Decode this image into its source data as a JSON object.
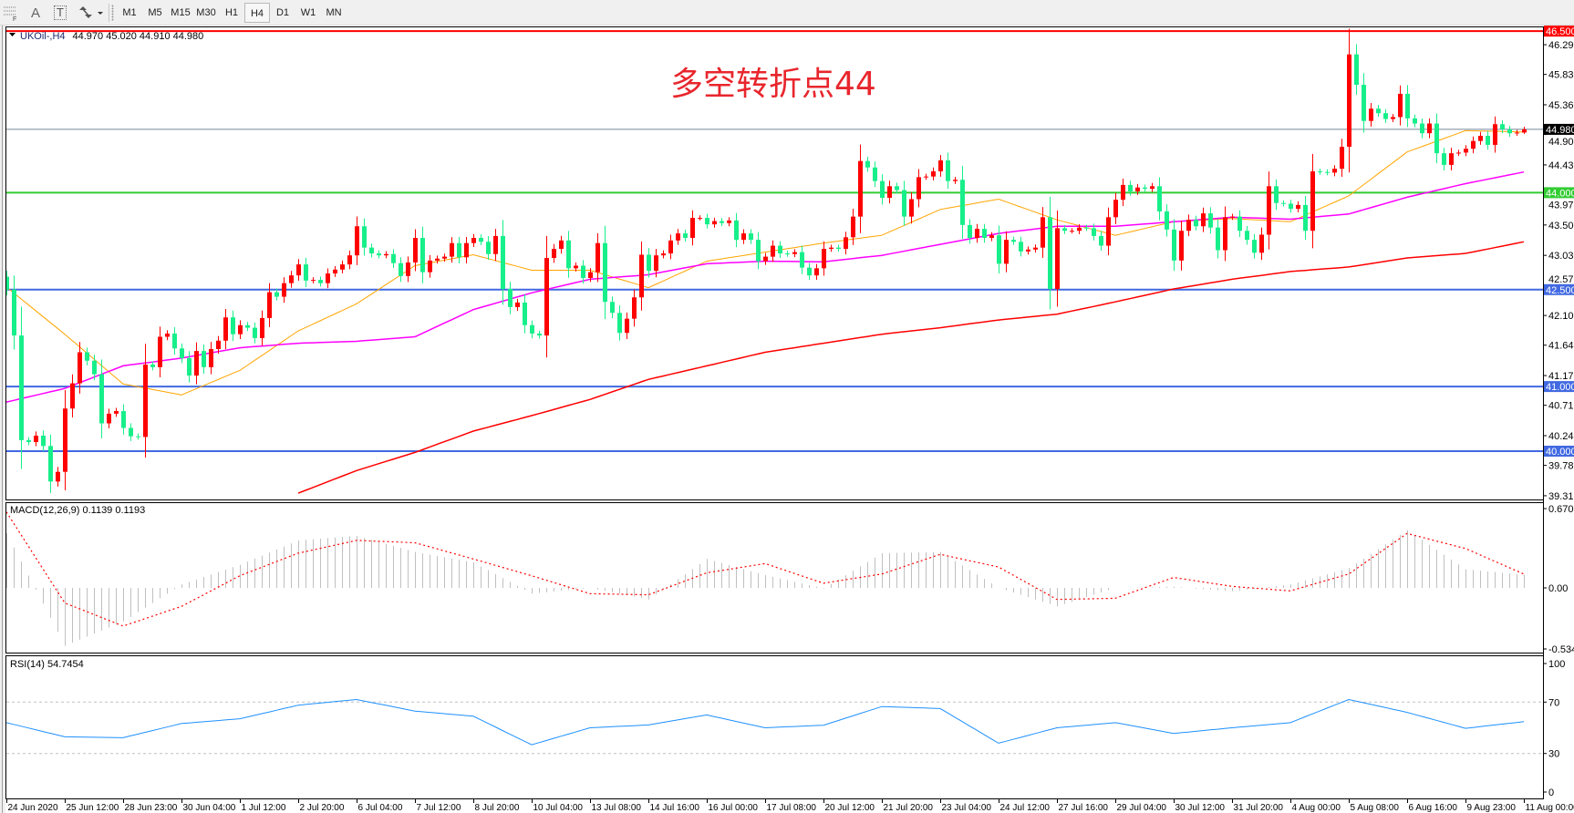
{
  "toolbar": {
    "tools": [
      {
        "icon": "fibonacci-grid-icon",
        "label": "F"
      },
      {
        "icon": "text-tool-icon",
        "label": "A"
      },
      {
        "icon": "text-label-icon",
        "label": "T"
      },
      {
        "icon": "arrows-tool-icon",
        "label": ""
      }
    ],
    "timeframes": [
      "M1",
      "M5",
      "M15",
      "M30",
      "H1",
      "H4",
      "D1",
      "W1",
      "MN"
    ],
    "active_timeframe": "H4"
  },
  "chart": {
    "symbol_timeframe": "UKOil-,H4",
    "ohlc_text": "44.970 45.020 44.910 44.980",
    "annotation": "多空转折点44",
    "colors": {
      "bull_candle": "#ff0000",
      "bear_candle": "#17ef8a",
      "background": "#ffffff"
    }
  },
  "chart_data": {
    "type": "candlestick",
    "symbol": "UKOil-",
    "timeframe": "H4",
    "last_bar": {
      "open": 44.97,
      "high": 45.02,
      "low": 44.91,
      "close": 44.98
    },
    "price_axis": {
      "range": [
        39.24,
        46.57
      ],
      "ticks": [
        "46.290",
        "45.830",
        "45.360",
        "44.900",
        "44.430",
        "43.970",
        "43.500",
        "43.030",
        "42.570",
        "42.100",
        "41.640",
        "41.170",
        "40.710",
        "40.240",
        "39.780",
        "39.310"
      ]
    },
    "levels": [
      {
        "price": 46.5,
        "label": "46.500",
        "color": "#ff0000",
        "label_bg": "#ff0000"
      },
      {
        "price": 44.98,
        "label": "44.980",
        "color": "#778899",
        "label_bg": "#000000"
      },
      {
        "price": 44.0,
        "label": "44.000",
        "color": "#33cc33",
        "label_bg": "#33cc33"
      },
      {
        "price": 42.5,
        "label": "42.500",
        "color": "#4169e1",
        "label_bg": "#4169e1"
      },
      {
        "price": 41.0,
        "label": "41.000",
        "color": "#4169e1",
        "label_bg": "#4169e1"
      },
      {
        "price": 40.0,
        "label": "40.000",
        "color": "#4169e1",
        "label_bg": "#4169e1"
      }
    ],
    "x_axis": {
      "labels": [
        "24 Jun 2020",
        "25 Jun 12:00",
        "28 Jun 23:00",
        "30 Jun 04:00",
        "1 Jul 12:00",
        "2 Jul 20:00",
        "6 Jul 04:00",
        "7 Jul 12:00",
        "8 Jul 20:00",
        "10 Jul 04:00",
        "13 Jul 08:00",
        "14 Jul 16:00",
        "16 Jul 00:00",
        "17 Jul 08:00",
        "20 Jul 12:00",
        "21 Jul 20:00",
        "23 Jul 04:00",
        "24 Jul 12:00",
        "27 Jul 16:00",
        "29 Jul 04:00",
        "30 Jul 12:00",
        "31 Jul 20:00",
        "4 Aug 00:00",
        "5 Aug 08:00",
        "6 Aug 16:00",
        "9 Aug 23:00",
        "11 Aug 00:00"
      ]
    },
    "candles": {
      "first_open": 42.7,
      "close": [
        42.5,
        41.79,
        40.17,
        40.14,
        40.24,
        40.08,
        39.53,
        39.68,
        40.66,
        41.05,
        41.53,
        41.4,
        41.19,
        40.43,
        40.58,
        40.62,
        40.36,
        40.23,
        40.22,
        41.34,
        41.3,
        41.77,
        41.82,
        41.59,
        41.44,
        41.17,
        41.55,
        41.3,
        41.58,
        41.71,
        42.07,
        41.81,
        41.95,
        41.91,
        41.75,
        42.06,
        42.46,
        42.39,
        42.6,
        42.72,
        42.89,
        42.64,
        42.65,
        42.6,
        42.75,
        42.81,
        42.89,
        43.03,
        43.48,
        43.15,
        43.06,
        43.03,
        43.05,
        42.91,
        42.71,
        42.92,
        43.3,
        42.77,
        42.95,
        42.98,
        43.01,
        43.22,
        43.0,
        43.22,
        43.3,
        43.24,
        43.05,
        43.33,
        42.51,
        42.23,
        42.3,
        41.95,
        41.82,
        41.79,
        42.99,
        43.13,
        43.26,
        42.83,
        42.87,
        42.68,
        42.77,
        43.22,
        42.31,
        42.14,
        41.83,
        42.05,
        42.38,
        43.04,
        42.79,
        43.03,
        43.06,
        43.26,
        43.37,
        43.3,
        43.61,
        43.61,
        43.51,
        43.56,
        43.53,
        43.57,
        43.27,
        43.37,
        43.27,
        42.94,
        43.01,
        43.18,
        43.06,
        43.05,
        43.08,
        42.84,
        42.72,
        42.83,
        43.13,
        43.15,
        43.13,
        43.31,
        43.63,
        44.49,
        44.39,
        44.18,
        43.92,
        44.1,
        44.04,
        43.63,
        43.9,
        44.24,
        44.25,
        44.33,
        44.5,
        44.18,
        44.2,
        43.5,
        43.3,
        43.44,
        43.3,
        43.34,
        42.9,
        43.27,
        43.24,
        43.09,
        43.12,
        43.15,
        43.62,
        42.51,
        43.45,
        43.41,
        43.41,
        43.46,
        43.45,
        43.33,
        43.18,
        43.62,
        43.89,
        44.12,
        44.02,
        44.08,
        44.06,
        44.1,
        43.71,
        43.43,
        42.95,
        43.41,
        43.58,
        43.48,
        43.68,
        43.46,
        43.11,
        43.62,
        43.63,
        43.41,
        43.27,
        43.07,
        43.35,
        44.1,
        43.84,
        43.83,
        43.75,
        43.81,
        43.41,
        44.33,
        44.32,
        44.31,
        44.37,
        44.71,
        46.14,
        45.67,
        45.11,
        45.3,
        45.23,
        45.14,
        45.17,
        45.53,
        45.15,
        45.07,
        44.92,
        45.07,
        44.61,
        44.43,
        44.61,
        44.62,
        44.68,
        44.8,
        44.88,
        44.74,
        45.06,
        44.98,
        44.92,
        44.93,
        44.98
      ]
    },
    "moving_averages": [
      {
        "color": "#ffa500",
        "values_at_date_labels": [
          42.54,
          41.81,
          41.04,
          40.87,
          41.25,
          41.86,
          42.28,
          42.87,
          43.04,
          42.8,
          42.8,
          42.53,
          42.94,
          43.08,
          43.22,
          43.34,
          43.74,
          43.9,
          43.58,
          43.34,
          43.55,
          43.6,
          43.55,
          43.95,
          44.63,
          44.96,
          44.94
        ]
      },
      {
        "color": "#ff00ff",
        "values_at_date_labels": [
          40.76,
          40.97,
          41.32,
          41.44,
          41.6,
          41.67,
          41.7,
          41.77,
          42.19,
          42.45,
          42.66,
          42.73,
          42.9,
          42.94,
          42.93,
          43.03,
          43.2,
          43.37,
          43.48,
          43.48,
          43.55,
          43.62,
          43.59,
          43.67,
          43.93,
          44.14,
          44.32
        ]
      },
      {
        "color": "#ff0000",
        "values_at_date_labels": [
          null,
          null,
          null,
          null,
          null,
          39.35,
          39.7,
          39.98,
          40.31,
          40.55,
          40.8,
          41.11,
          41.32,
          41.53,
          41.67,
          41.81,
          41.91,
          42.03,
          42.12,
          42.31,
          42.51,
          42.66,
          42.78,
          42.85,
          42.99,
          43.06,
          43.24
        ]
      }
    ],
    "macd": {
      "label": "MACD(12,26,9) 0.1139 0.1193",
      "axis_labels": [
        "0.6705",
        "0.00",
        "-0.5342"
      ],
      "axis_values": [
        0.6705,
        0,
        -0.5342
      ],
      "histogram_color": "#c0c0c0",
      "signal_color": "#ff0000",
      "main_at_date_labels": [
        0.47,
        -0.5,
        -0.29,
        0.03,
        0.2,
        0.41,
        0.45,
        0.31,
        0.22,
        -0.05,
        0.0,
        -0.1,
        0.25,
        0.11,
        -0.005,
        0.3,
        0.31,
        0.0,
        -0.16,
        0.0,
        0.01,
        -0.03,
        0.03,
        0.17,
        0.5,
        0.16,
        0.1139
      ],
      "signal_at_date_labels": [
        0.656,
        -0.13,
        -0.33,
        -0.16,
        0.105,
        0.3,
        0.41,
        0.39,
        0.25,
        0.105,
        -0.05,
        -0.06,
        0.13,
        0.21,
        0.04,
        0.12,
        0.29,
        0.18,
        -0.1,
        -0.09,
        0.09,
        0.013,
        -0.026,
        0.12,
        0.47,
        0.34,
        0.1193
      ]
    },
    "rsi": {
      "label": "RSI(14) 54.7454",
      "axis_labels": [
        "100",
        "70",
        "30",
        "0"
      ],
      "axis_values": [
        100,
        70,
        30,
        0
      ],
      "levels": [
        70,
        30
      ],
      "color": "#1e90ff",
      "values_at_date_labels": [
        54,
        43,
        42.3,
        53.3,
        57,
        67.6,
        72,
        63,
        59,
        36.8,
        50,
        52.2,
        60,
        50,
        52,
        66.5,
        65,
        38,
        50,
        54,
        45.6,
        50,
        54,
        72,
        62,
        49.6,
        54.7454
      ]
    }
  }
}
